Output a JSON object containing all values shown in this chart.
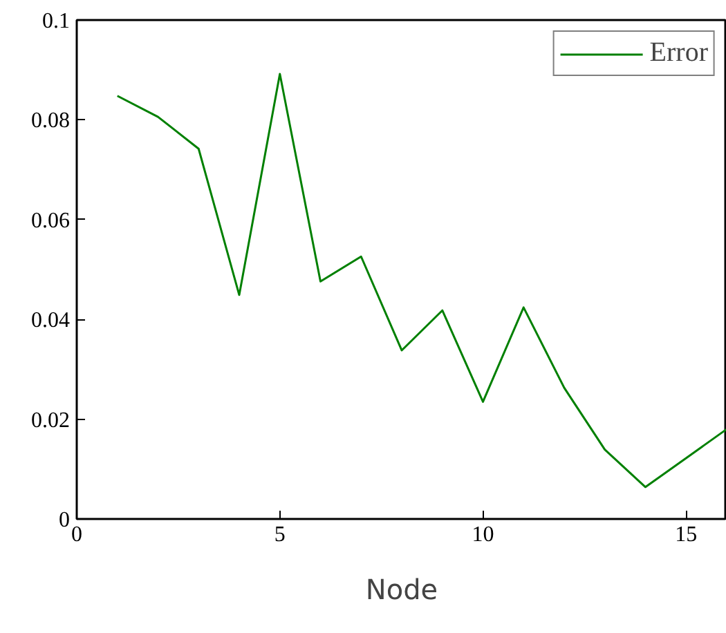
{
  "chart_data": {
    "type": "line",
    "xlabel": "Node",
    "x": [
      1,
      2,
      3,
      4,
      5,
      6,
      7,
      8,
      9,
      10,
      11,
      12,
      13,
      14,
      15,
      16
    ],
    "series": [
      {
        "name": "Error",
        "color": "#008000",
        "values": [
          0.0848,
          0.0806,
          0.0742,
          0.0449,
          0.0892,
          0.0476,
          0.0526,
          0.0338,
          0.0418,
          0.0235,
          0.0424,
          0.0263,
          0.0139,
          0.0064,
          0.0122,
          0.018
        ]
      }
    ],
    "xlim": [
      0,
      16
    ],
    "ylim": [
      0,
      0.1
    ],
    "xticks": [
      0,
      5,
      10,
      15
    ],
    "yticks": [
      0,
      0.02,
      0.04,
      0.06,
      0.08,
      0.1
    ],
    "grid": false,
    "legend": "top right",
    "marker": "none",
    "line_style": "solid"
  }
}
